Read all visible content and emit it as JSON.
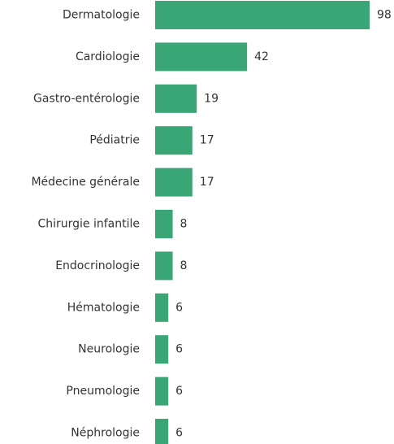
{
  "chart_data": {
    "type": "bar",
    "orientation": "horizontal",
    "categories": [
      "Dermatologie",
      "Cardiologie",
      "Gastro-entérologie",
      "Pédiatrie",
      "Médecine générale",
      "Chirurgie infantile",
      "Endocrinologie",
      "Hématologie",
      "Neurologie",
      "Pneumologie",
      "Néphrologie"
    ],
    "values": [
      98,
      42,
      19,
      17,
      17,
      8,
      8,
      6,
      6,
      6,
      6
    ],
    "color": "#3aa676"
  }
}
